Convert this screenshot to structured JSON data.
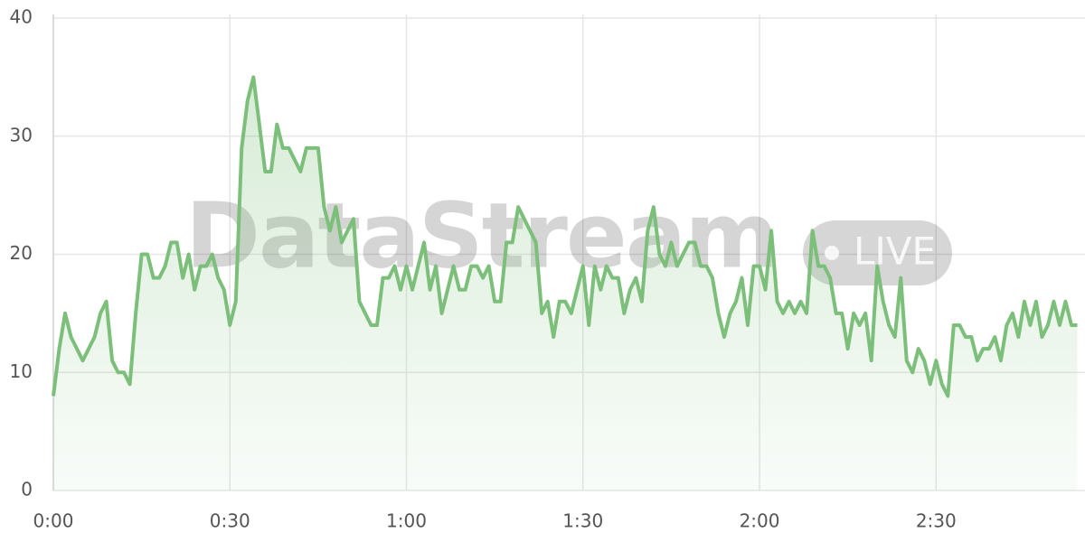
{
  "chart_data": {
    "type": "area",
    "watermark": "DataStream",
    "badge": "LIVE",
    "x": [
      0,
      1,
      2,
      3,
      4,
      5,
      6,
      7,
      8,
      9,
      10,
      11,
      12,
      13,
      14,
      15,
      16,
      17,
      18,
      19,
      20,
      21,
      22,
      23,
      24,
      25,
      26,
      27,
      28,
      29,
      30,
      31,
      32,
      33,
      34,
      35,
      36,
      37,
      38,
      39,
      40,
      41,
      42,
      43,
      44,
      45,
      46,
      47,
      48,
      49,
      50,
      51,
      52,
      53,
      54,
      55,
      56,
      57,
      58,
      59,
      60,
      61,
      62,
      63,
      64,
      65,
      66,
      67,
      68,
      69,
      70,
      71,
      72,
      73,
      74,
      75,
      76,
      77,
      78,
      79,
      80,
      81,
      82,
      83,
      84,
      85,
      86,
      87,
      88,
      89,
      90,
      91,
      92,
      93,
      94,
      95,
      96,
      97,
      98,
      99,
      100,
      101,
      102,
      103,
      104,
      105,
      106,
      107,
      108,
      109,
      110,
      111,
      112,
      113,
      114,
      115,
      116,
      117,
      118,
      119,
      120,
      121,
      122,
      123,
      124,
      125,
      126,
      127,
      128,
      129,
      130,
      131,
      132,
      133,
      134,
      135,
      136,
      137,
      138,
      139,
      140,
      141,
      142,
      143,
      144,
      145,
      146,
      147,
      148,
      149,
      150,
      151,
      152,
      153,
      154,
      155,
      156,
      157,
      158,
      159,
      160,
      161,
      162,
      163,
      164,
      165,
      166,
      167,
      168,
      169,
      170,
      171,
      172,
      173,
      174
    ],
    "series": [
      {
        "color": "#7cbf7a",
        "values": [
          8,
          12,
          15,
          13,
          12,
          11,
          12,
          13,
          15,
          16,
          11,
          10,
          10,
          9,
          15,
          20,
          20,
          18,
          18,
          19,
          21,
          21,
          18,
          20,
          17,
          19,
          19,
          20,
          18,
          17,
          14,
          16,
          29,
          33,
          35,
          31,
          27,
          27,
          31,
          29,
          29,
          28,
          27,
          29,
          29,
          29,
          24,
          22,
          24,
          21,
          22,
          23,
          16,
          15,
          14,
          14,
          18,
          18,
          19,
          17,
          19,
          17,
          19,
          21,
          17,
          19,
          15,
          17,
          19,
          17,
          17,
          19,
          19,
          18,
          19,
          16,
          16,
          21,
          21,
          24,
          23,
          22,
          21,
          15,
          16,
          13,
          16,
          16,
          15,
          17,
          19,
          14,
          19,
          17,
          19,
          18,
          18,
          15,
          17,
          18,
          16,
          22,
          24,
          20,
          19,
          21,
          19,
          20,
          21,
          21,
          19,
          19,
          18,
          15,
          13,
          15,
          16,
          18,
          14,
          19,
          19,
          17,
          22,
          16,
          15,
          16,
          15,
          16,
          15,
          22,
          19,
          19,
          18,
          15,
          15,
          12,
          15,
          14,
          15,
          11,
          19,
          16,
          14,
          13,
          18,
          11,
          10,
          12,
          11,
          9,
          11,
          9,
          8,
          14,
          14,
          13,
          13,
          11,
          12,
          12,
          13,
          11,
          14,
          15,
          13,
          16,
          14,
          16,
          13,
          14,
          16,
          14,
          16,
          14,
          14
        ]
      }
    ],
    "xlim": [
      0,
      175
    ],
    "ylim": [
      0,
      40
    ],
    "xticks": [
      {
        "value": 0,
        "label": "0:00"
      },
      {
        "value": 30,
        "label": "0:30"
      },
      {
        "value": 60,
        "label": "1:00"
      },
      {
        "value": 90,
        "label": "1:30"
      },
      {
        "value": 120,
        "label": "2:00"
      },
      {
        "value": 150,
        "label": "2:30"
      }
    ],
    "yticks": [
      0,
      10,
      20,
      30,
      40
    ],
    "grid": true
  }
}
